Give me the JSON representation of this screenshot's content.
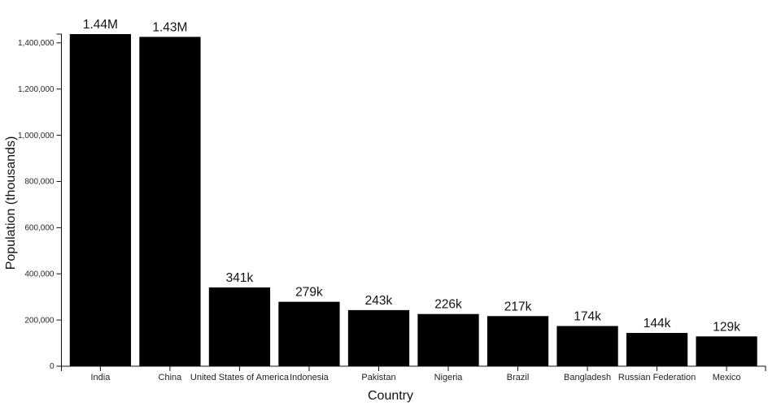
{
  "chart_data": {
    "type": "bar",
    "title": "",
    "xlabel": "Country",
    "ylabel": "Population (thousands)",
    "categories": [
      "India",
      "China",
      "United States of America",
      "Indonesia",
      "Pakistan",
      "Nigeria",
      "Brazil",
      "Bangladesh",
      "Russian Federation",
      "Mexico"
    ],
    "values": [
      1438000,
      1426000,
      341000,
      279000,
      243000,
      226000,
      217000,
      174000,
      144000,
      129000
    ],
    "value_labels": [
      "1.44M",
      "1.43M",
      "341k",
      "279k",
      "243k",
      "226k",
      "217k",
      "174k",
      "144k",
      "129k"
    ],
    "ylim": [
      0,
      1438000
    ],
    "yticks": [
      0,
      200000,
      400000,
      600000,
      800000,
      1000000,
      1200000,
      1400000
    ],
    "ytick_labels": [
      "0",
      "200,000",
      "400,000",
      "600,000",
      "800,000",
      "1,000,000",
      "1,200,000",
      "1,400,000"
    ],
    "grid": false,
    "legend": "none",
    "bar_color": "#000000",
    "axis_color": "#111111",
    "background_color": "#ffffff"
  }
}
